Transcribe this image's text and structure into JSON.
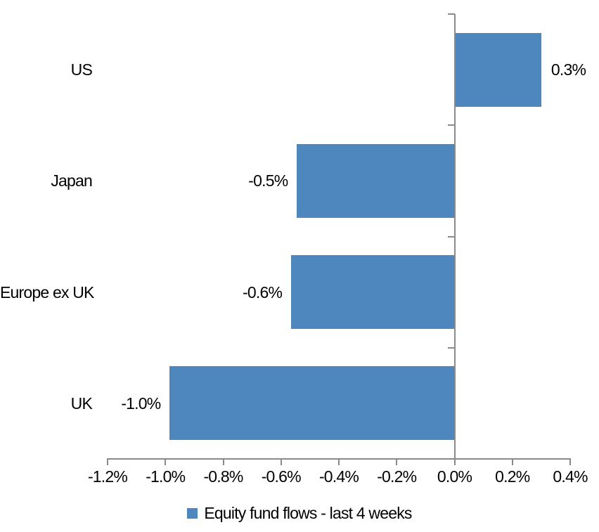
{
  "chart_data": {
    "type": "bar",
    "orientation": "horizontal",
    "title": "",
    "categories": [
      "US",
      "Japan",
      "Europe ex UK",
      "UK"
    ],
    "values": [
      0.3,
      -0.5,
      -0.6,
      -1.0
    ],
    "value_labels": [
      "0.3%",
      "-0.5%",
      "-0.6%",
      "-1.0%"
    ],
    "plot_values": [
      0.3,
      -0.545,
      -0.565,
      -0.985
    ],
    "series_name": "Equity fund flows - last 4 weeks",
    "xlim": [
      -1.2,
      0.4
    ],
    "x_tick_step": 0.2,
    "x_tick_labels": [
      "-1.2%",
      "-1.0%",
      "-0.8%",
      "-0.6%",
      "-0.4%",
      "-0.2%",
      "0.0%",
      "0.2%",
      "0.4%"
    ],
    "grid": false,
    "legend_position": "bottom",
    "bar_color": "#4E87BE",
    "axis_color": "#8A8A8A",
    "text_color": "#000000",
    "background": "#FFFFFF"
  }
}
